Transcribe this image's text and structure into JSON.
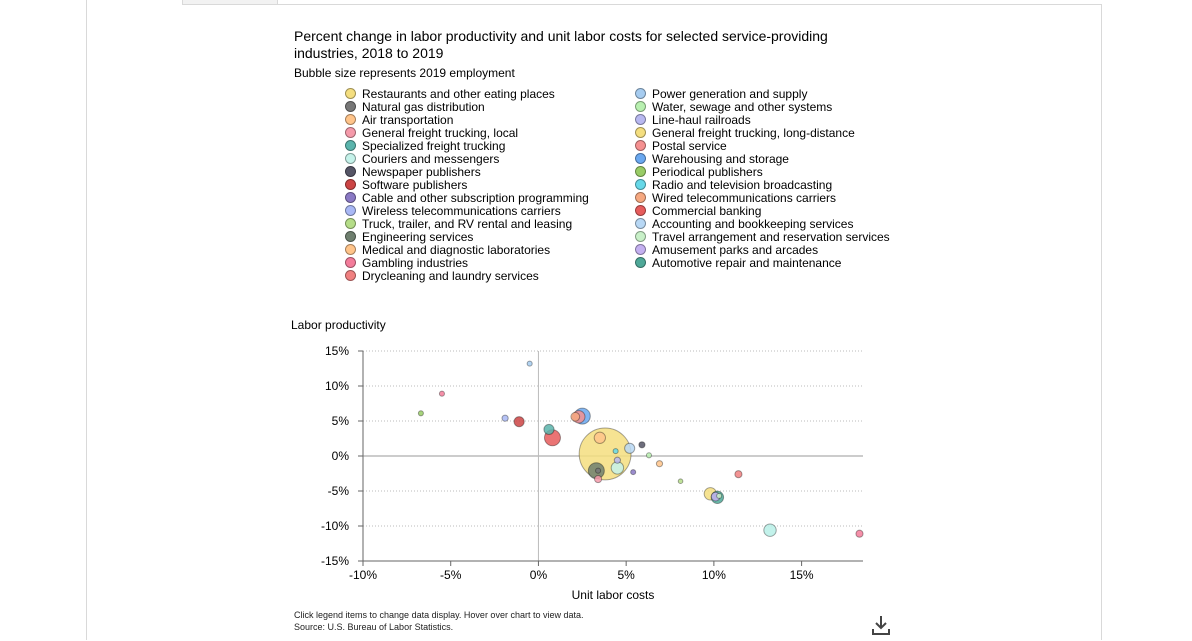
{
  "chart_data": {
    "type": "scatter",
    "title": "Percent change in labor productivity and unit labor costs for selected service-providing industries, 2018 to 2019",
    "subtitle": "Bubble size represents 2019 employment",
    "xlabel": "Unit labor costs",
    "ylabel": "Labor productivity",
    "xlim": [
      -10,
      18.5
    ],
    "ylim": [
      -15,
      15
    ],
    "x_ticks": [
      "-10%",
      "-5%",
      "0%",
      "5%",
      "10%",
      "15%"
    ],
    "y_ticks": [
      "15%",
      "10%",
      "5%",
      "0%",
      "-5%",
      "-10%",
      "-15%"
    ],
    "grid": true,
    "series": [
      {
        "name": "Restaurants and other eating places",
        "color": "#f4de7f",
        "x": 3.8,
        "y": 0.3,
        "size": 10.5
      },
      {
        "name": "Natural gas distribution",
        "color": "#777777",
        "x": 3.4,
        "y": -2.1,
        "size": 0.1
      },
      {
        "name": "Air transportation",
        "color": "#ffc48a",
        "x": 3.5,
        "y": 2.6,
        "size": 0.5
      },
      {
        "name": "General freight trucking, local",
        "color": "#f59aaa",
        "x": 3.4,
        "y": -3.3,
        "size": 0.2
      },
      {
        "name": "Specialized freight trucking",
        "color": "#5ab4ac",
        "x": 0.6,
        "y": 3.8,
        "size": 0.4
      },
      {
        "name": "Couriers and messengers",
        "color": "#c5f2ea",
        "x": 4.5,
        "y": -1.7,
        "size": 0.6
      },
      {
        "name": "Newspaper publishers",
        "color": "#555566",
        "x": 5.9,
        "y": 1.6,
        "size": 0.15
      },
      {
        "name": "Software publishers",
        "color": "#cc4444",
        "x": -1.1,
        "y": 4.9,
        "size": 0.4
      },
      {
        "name": "Cable and other subscription programming",
        "color": "#8a79c4",
        "x": 5.4,
        "y": -2.3,
        "size": 0.1
      },
      {
        "name": "Wireless telecommunications carriers",
        "color": "#a9b8f5",
        "x": -1.9,
        "y": 5.4,
        "size": 0.15
      },
      {
        "name": "Truck, trailer, and RV rental and leasing",
        "color": "#b5dd88",
        "x": 8.1,
        "y": -3.6,
        "size": 0.05
      },
      {
        "name": "Engineering services",
        "color": "#6f7f6f",
        "x": 3.3,
        "y": -2.1,
        "size": 1.0
      },
      {
        "name": "Medical and diagnostic laboratories",
        "color": "#ffc48a",
        "x": 6.9,
        "y": -1.1,
        "size": 0.15
      },
      {
        "name": "Gambling industries",
        "color": "#f37c9a",
        "x": -5.5,
        "y": 8.9,
        "size": 0.1
      },
      {
        "name": "Drycleaning and laundry services",
        "color": "#f08080",
        "x": 11.4,
        "y": -2.6,
        "size": 0.2
      },
      {
        "name": "Power generation and supply",
        "color": "#a6ccf0",
        "x": -0.5,
        "y": 13.2,
        "size": 0.1
      },
      {
        "name": "Water, sewage and other systems",
        "color": "#b8f0b0",
        "x": 6.3,
        "y": 0.1,
        "size": 0.1
      },
      {
        "name": "Line-haul railroads",
        "color": "#b8b8f0",
        "x": 4.5,
        "y": -0.6,
        "size": 0.15
      },
      {
        "name": "General freight trucking, long-distance",
        "color": "#f4de7f",
        "x": 9.8,
        "y": -5.4,
        "size": 0.6
      },
      {
        "name": "Postal service",
        "color": "#f59090",
        "x": 2.3,
        "y": 5.6,
        "size": 0.6
      },
      {
        "name": "Warehousing and storage",
        "color": "#6aa8f0",
        "x": 2.5,
        "y": 5.7,
        "size": 1.0
      },
      {
        "name": "Periodical publishers",
        "color": "#99cc66",
        "x": -6.7,
        "y": 6.1,
        "size": 0.1
      },
      {
        "name": "Radio and television broadcasting",
        "color": "#66d8e8",
        "x": 4.4,
        "y": 0.7,
        "size": 0.1
      },
      {
        "name": "Wired telecommunications carriers",
        "color": "#f6a880",
        "x": 2.1,
        "y": 5.6,
        "size": 0.3
      },
      {
        "name": "Commercial banking",
        "color": "#e65c5c",
        "x": 0.8,
        "y": 2.6,
        "size": 1.0
      },
      {
        "name": "Accounting and bookkeeping services",
        "color": "#b8d8f5",
        "x": 5.2,
        "y": 1.1,
        "size": 0.4
      },
      {
        "name": "Travel arrangement and reservation services",
        "color": "#c8f0c8",
        "x": 10.3,
        "y": -5.7,
        "size": 0.1
      },
      {
        "name": "Amusement parks and arcades",
        "color": "#c4b0f0",
        "x": 10.1,
        "y": -5.8,
        "size": 0.3
      },
      {
        "name": "Automotive repair and maintenance",
        "color": "#4fa898",
        "x": 10.2,
        "y": -5.9,
        "size": 0.6
      }
    ],
    "extra_points": [
      {
        "color": "#b8f0e8",
        "x": 13.2,
        "y": -10.6,
        "size": 0.6
      },
      {
        "color": "#f37c9a",
        "x": 18.3,
        "y": -11.1,
        "size": 0.2
      }
    ]
  },
  "notes": {
    "line1": "Click legend items to change data display. Hover over chart to view data.",
    "line2": "Source: U.S. Bureau of Labor Statistics."
  },
  "icons": {
    "download": "download-icon"
  }
}
